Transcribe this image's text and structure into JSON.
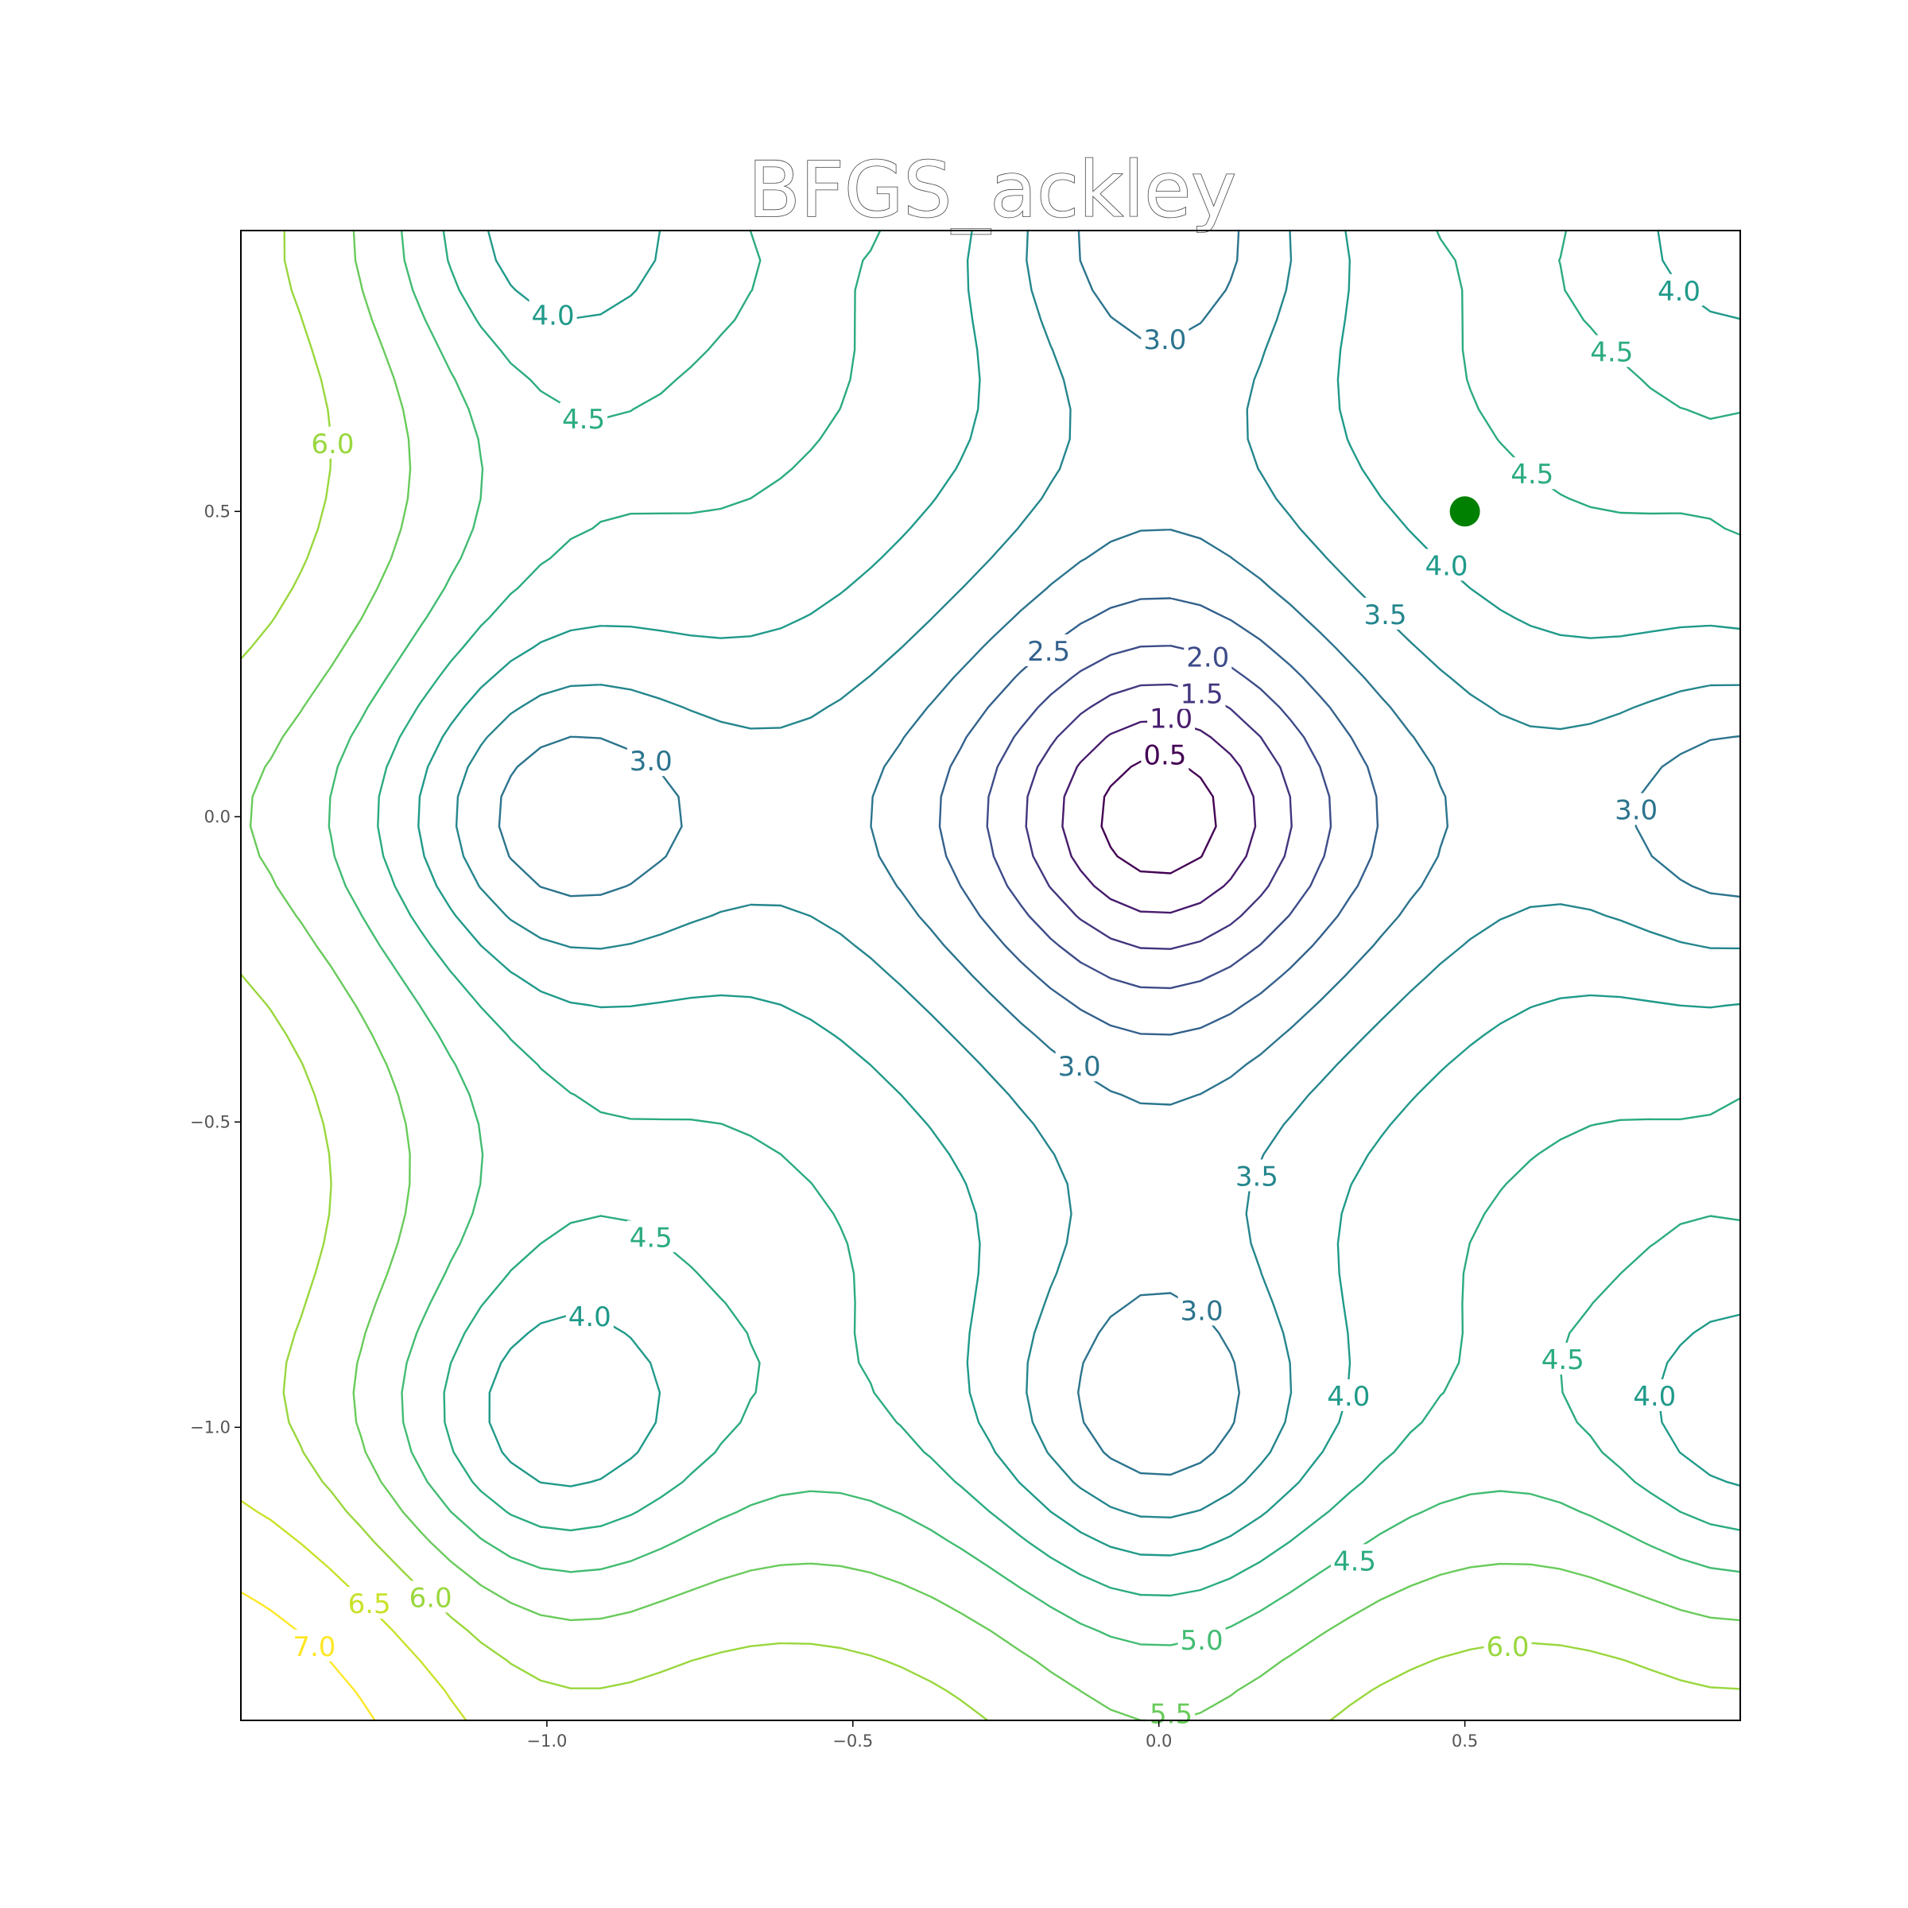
{
  "chart_data": {
    "type": "contour",
    "title": "BFGS_ackley",
    "xlabel": "",
    "ylabel": "",
    "xlim": [
      -1.5,
      0.95
    ],
    "ylim": [
      -1.48,
      0.96
    ],
    "x_ticks": [
      -1.0,
      -0.5,
      0.0,
      0.5
    ],
    "y_ticks": [
      -1.0,
      -0.5,
      0.0,
      0.5
    ],
    "x_tick_labels": [
      "−1.0",
      "−0.5",
      "0.0",
      "0.5"
    ],
    "y_tick_labels": [
      "−1.0",
      "−0.5",
      "0.0",
      "0.5"
    ],
    "contour_levels": [
      0.5,
      1.0,
      1.5,
      2.0,
      2.5,
      3.0,
      3.5,
      4.0,
      4.5,
      5.0,
      5.5,
      6.0,
      6.5,
      7.0
    ],
    "colormap": "viridis",
    "grid": false,
    "contour_labels": [
      {
        "text": "0.5",
        "x": 0.01,
        "y": 0.1
      },
      {
        "text": "1.0",
        "x": 0.02,
        "y": 0.16
      },
      {
        "text": "1.5",
        "x": 0.07,
        "y": 0.2
      },
      {
        "text": "2.0",
        "x": 0.08,
        "y": 0.26
      },
      {
        "text": "2.5",
        "x": -0.18,
        "y": 0.27
      },
      {
        "text": "3.0",
        "x": 0.01,
        "y": 0.78
      },
      {
        "text": "3.0",
        "x": -0.83,
        "y": 0.09
      },
      {
        "text": "3.0",
        "x": 0.78,
        "y": 0.01
      },
      {
        "text": "3.0",
        "x": -0.13,
        "y": -0.41
      },
      {
        "text": "3.0",
        "x": 0.07,
        "y": -0.81
      },
      {
        "text": "3.5",
        "x": 0.37,
        "y": 0.33
      },
      {
        "text": "3.5",
        "x": 0.16,
        "y": -0.59
      },
      {
        "text": "4.0",
        "x": -0.99,
        "y": 0.82
      },
      {
        "text": "4.0",
        "x": 0.85,
        "y": 0.86
      },
      {
        "text": "4.0",
        "x": 0.47,
        "y": 0.41
      },
      {
        "text": "4.0",
        "x": -0.93,
        "y": -0.82
      },
      {
        "text": "4.0",
        "x": 0.31,
        "y": -0.95
      },
      {
        "text": "4.0",
        "x": 0.81,
        "y": -0.95
      },
      {
        "text": "4.5",
        "x": -0.94,
        "y": 0.65
      },
      {
        "text": "4.5",
        "x": 0.74,
        "y": 0.76
      },
      {
        "text": "4.5",
        "x": 0.61,
        "y": 0.56
      },
      {
        "text": "4.5",
        "x": -0.83,
        "y": -0.69
      },
      {
        "text": "4.5",
        "x": 0.66,
        "y": -0.89
      },
      {
        "text": "4.5",
        "x": 0.32,
        "y": -1.22
      },
      {
        "text": "5.0",
        "x": 0.07,
        "y": -1.35
      },
      {
        "text": "5.5",
        "x": 0.02,
        "y": -1.47
      },
      {
        "text": "6.0",
        "x": -1.35,
        "y": 0.61
      },
      {
        "text": "6.0",
        "x": -1.19,
        "y": -1.28
      },
      {
        "text": "6.0",
        "x": 0.57,
        "y": -1.36
      },
      {
        "text": "6.5",
        "x": -1.29,
        "y": -1.29
      },
      {
        "text": "7.0",
        "x": -1.38,
        "y": -1.36
      }
    ],
    "marker": {
      "x": 0.5,
      "y": 0.5,
      "color": "#008000"
    }
  }
}
